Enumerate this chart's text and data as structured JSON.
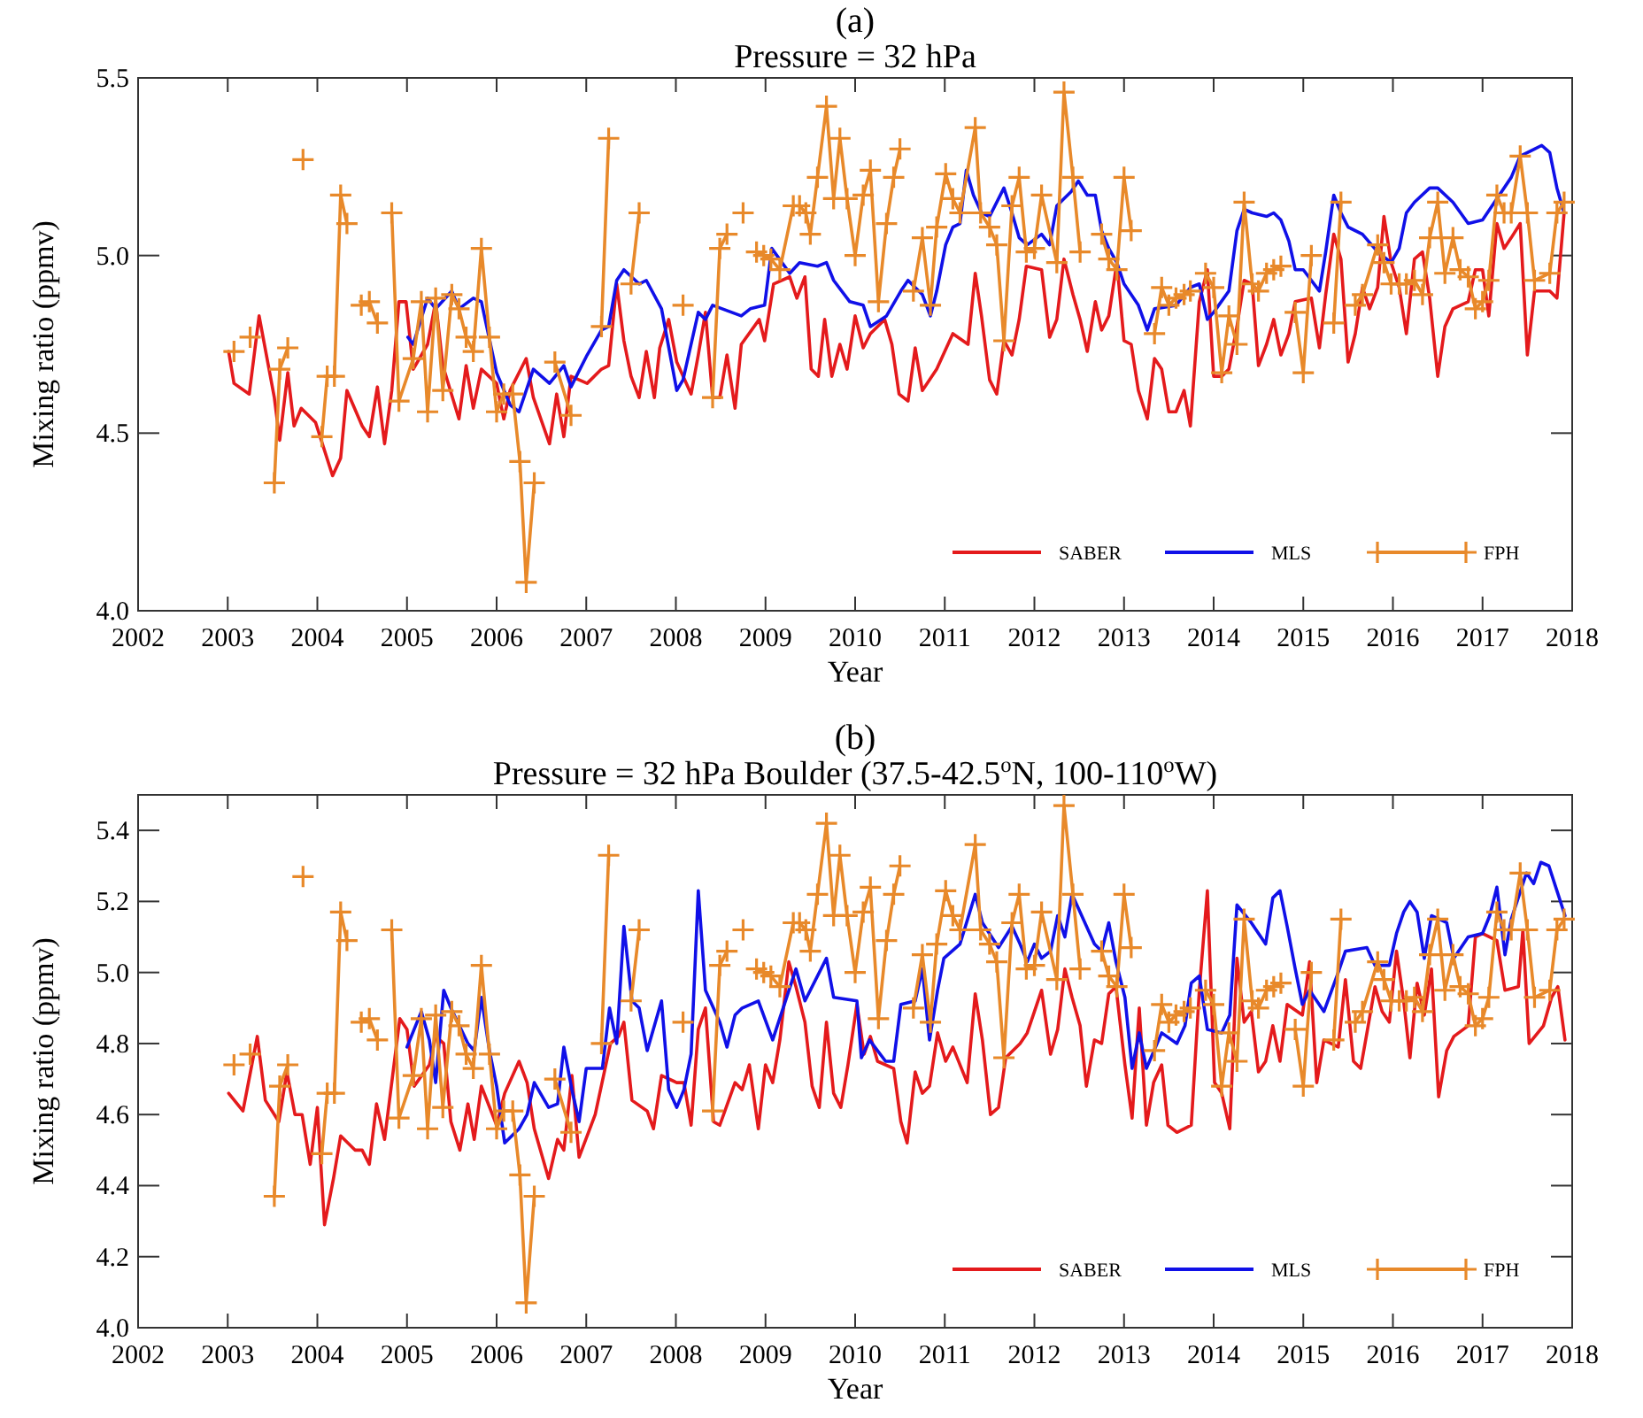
{
  "chart_data": [
    {
      "type": "line",
      "title": "(a)",
      "subtitle": "Pressure = 32 hPa",
      "xlabel": "Year",
      "ylabel": "Mixing ratio (ppmv)",
      "xlim": [
        2002,
        2018
      ],
      "xticks": [
        2002,
        2003,
        2004,
        2005,
        2006,
        2007,
        2008,
        2009,
        2010,
        2011,
        2012,
        2013,
        2014,
        2015,
        2016,
        2017,
        2018
      ],
      "ylim": [
        4.0,
        5.5
      ],
      "yticks": [
        {
          "value": 4.0,
          "label": "4.0"
        },
        {
          "value": 4.5,
          "label": "4.5"
        },
        {
          "value": 5.0,
          "label": "5.0"
        },
        {
          "value": 5.5,
          "label": "5.5"
        }
      ],
      "legend": "bottom right",
      "line_style": "solid",
      "series": [
        {
          "name": "SABER",
          "color": "#e41a1c",
          "marker": "none",
          "x": [
            2003.01,
            2003.07,
            2003.24,
            2003.35,
            2003.52,
            2003.58,
            2003.67,
            2003.74,
            2003.82,
            2003.98,
            2004.17,
            2004.26,
            2004.33,
            2004.5,
            2004.58,
            2004.67,
            2004.75,
            2004.83,
            2004.91,
            2004.99,
            2005.07,
            2005.23,
            2005.32,
            2005.4,
            2005.58,
            2005.66,
            2005.74,
            2005.83,
            2006.0,
            2006.08,
            2006.15,
            2006.33,
            2006.41,
            2006.59,
            2006.67,
            2006.75,
            2006.83,
            2007.01,
            2007.17,
            2007.25,
            2007.34,
            2007.42,
            2007.5,
            2007.59,
            2007.67,
            2007.76,
            2007.82,
            2007.92,
            2008.01,
            2008.17,
            2008.25,
            2008.33,
            2008.41,
            2008.49,
            2008.57,
            2008.66,
            2008.73,
            2008.93,
            2008.99,
            2009.09,
            2009.27,
            2009.35,
            2009.44,
            2009.51,
            2009.59,
            2009.66,
            2009.74,
            2009.83,
            2009.91,
            2010.0,
            2010.09,
            2010.17,
            2010.33,
            2010.41,
            2010.49,
            2010.59,
            2010.67,
            2010.75,
            2010.91,
            2011.09,
            2011.26,
            2011.34,
            2011.41,
            2011.5,
            2011.58,
            2011.66,
            2011.75,
            2011.83,
            2011.91,
            2012.08,
            2012.17,
            2012.25,
            2012.33,
            2012.43,
            2012.51,
            2012.59,
            2012.68,
            2012.75,
            2012.83,
            2012.92,
            2013.0,
            2013.08,
            2013.16,
            2013.26,
            2013.34,
            2013.42,
            2013.5,
            2013.58,
            2013.67,
            2013.74,
            2013.84,
            2013.93,
            2014.0,
            2014.09,
            2014.17,
            2014.26,
            2014.34,
            2014.43,
            2014.5,
            2014.59,
            2014.67,
            2014.75,
            2014.84,
            2014.91,
            2015.09,
            2015.18,
            2015.25,
            2015.34,
            2015.42,
            2015.5,
            2015.58,
            2015.66,
            2015.74,
            2015.83,
            2015.9,
            2015.98,
            2016.07,
            2016.15,
            2016.24,
            2016.33,
            2016.41,
            2016.5,
            2016.58,
            2016.67,
            2016.84,
            2016.92,
            2017.0,
            2017.07,
            2017.16,
            2017.24,
            2017.32,
            2017.42,
            2017.5,
            2017.58,
            2017.75,
            2017.83,
            2017.91
          ],
          "values": [
            4.73,
            4.64,
            4.61,
            4.83,
            4.6,
            4.48,
            4.67,
            4.52,
            4.57,
            4.53,
            4.38,
            4.43,
            4.62,
            4.52,
            4.49,
            4.63,
            4.47,
            4.62,
            4.87,
            4.87,
            4.68,
            4.75,
            4.87,
            4.69,
            4.54,
            4.69,
            4.57,
            4.68,
            4.64,
            4.54,
            4.62,
            4.71,
            4.6,
            4.47,
            4.61,
            4.49,
            4.66,
            4.64,
            4.68,
            4.69,
            4.92,
            4.76,
            4.66,
            4.6,
            4.73,
            4.6,
            4.74,
            4.82,
            4.7,
            4.61,
            4.72,
            4.84,
            4.6,
            4.6,
            4.72,
            4.57,
            4.75,
            4.82,
            4.76,
            4.92,
            4.94,
            4.88,
            4.94,
            4.68,
            4.66,
            4.82,
            4.66,
            4.75,
            4.68,
            4.83,
            4.74,
            4.78,
            4.82,
            4.75,
            4.61,
            4.59,
            4.74,
            4.62,
            4.68,
            4.78,
            4.75,
            4.95,
            4.83,
            4.65,
            4.61,
            4.76,
            4.72,
            4.82,
            4.97,
            4.96,
            4.77,
            4.82,
            4.99,
            4.89,
            4.82,
            4.73,
            4.87,
            4.79,
            4.83,
            4.98,
            4.76,
            4.75,
            4.62,
            4.54,
            4.71,
            4.68,
            4.56,
            4.56,
            4.62,
            4.52,
            4.87,
            4.96,
            4.66,
            4.66,
            4.68,
            4.8,
            4.93,
            4.92,
            4.69,
            4.75,
            4.82,
            4.72,
            4.78,
            4.87,
            4.88,
            4.74,
            4.89,
            5.06,
            4.99,
            4.7,
            4.78,
            4.91,
            4.85,
            4.91,
            5.11,
            4.98,
            4.91,
            4.78,
            4.99,
            5.01,
            4.88,
            4.66,
            4.8,
            4.85,
            4.87,
            4.96,
            4.96,
            4.83,
            5.09,
            5.02,
            5.05,
            5.09,
            4.72,
            4.9,
            4.9,
            4.88,
            5.12
          ]
        },
        {
          "name": "MLS",
          "color": "#1010e8",
          "marker": "none",
          "x": [
            2005.01,
            2005.07,
            2005.23,
            2005.32,
            2005.5,
            2005.58,
            2005.74,
            2005.83,
            2006.0,
            2006.15,
            2006.25,
            2006.41,
            2006.59,
            2006.75,
            2006.83,
            2007.01,
            2007.17,
            2007.25,
            2007.34,
            2007.42,
            2007.59,
            2007.67,
            2007.84,
            2008.01,
            2008.08,
            2008.25,
            2008.33,
            2008.41,
            2008.73,
            2008.83,
            2008.99,
            2009.07,
            2009.27,
            2009.38,
            2009.58,
            2009.68,
            2009.76,
            2009.94,
            2010.09,
            2010.17,
            2010.35,
            2010.51,
            2010.59,
            2010.75,
            2010.84,
            2010.91,
            2011.01,
            2011.09,
            2011.17,
            2011.24,
            2011.32,
            2011.41,
            2011.5,
            2011.66,
            2011.75,
            2011.83,
            2011.92,
            2012.08,
            2012.17,
            2012.25,
            2012.41,
            2012.49,
            2012.59,
            2012.68,
            2012.75,
            2012.83,
            2012.92,
            2013.0,
            2013.16,
            2013.26,
            2013.34,
            2013.58,
            2013.74,
            2013.84,
            2013.93,
            2014.0,
            2014.17,
            2014.26,
            2014.34,
            2014.43,
            2014.59,
            2014.67,
            2014.75,
            2014.84,
            2014.91,
            2015.0,
            2015.18,
            2015.25,
            2015.34,
            2015.42,
            2015.5,
            2015.66,
            2015.83,
            2015.98,
            2016.07,
            2016.15,
            2016.24,
            2016.41,
            2016.5,
            2016.67,
            2016.84,
            2017.0,
            2017.16,
            2017.32,
            2017.42,
            2017.58,
            2017.66,
            2017.75,
            2017.83,
            2017.91
          ],
          "values": [
            4.77,
            4.75,
            4.88,
            4.85,
            4.9,
            4.85,
            4.88,
            4.87,
            4.67,
            4.58,
            4.56,
            4.68,
            4.64,
            4.69,
            4.63,
            4.72,
            4.79,
            4.8,
            4.93,
            4.96,
            4.92,
            4.93,
            4.85,
            4.62,
            4.65,
            4.84,
            4.82,
            4.86,
            4.83,
            4.85,
            4.86,
            5.02,
            4.95,
            4.98,
            4.97,
            4.98,
            4.93,
            4.87,
            4.86,
            4.8,
            4.83,
            4.9,
            4.93,
            4.89,
            4.83,
            4.9,
            5.03,
            5.08,
            5.09,
            5.24,
            5.17,
            5.12,
            5.11,
            5.19,
            5.12,
            5.05,
            5.03,
            5.06,
            5.03,
            5.14,
            5.18,
            5.21,
            5.17,
            5.17,
            5.07,
            5.02,
            4.98,
            4.92,
            4.86,
            4.79,
            4.85,
            4.86,
            4.91,
            4.92,
            4.82,
            4.84,
            4.9,
            5.07,
            5.13,
            5.12,
            5.11,
            5.12,
            5.1,
            5.04,
            4.96,
            4.96,
            4.9,
            5.01,
            5.17,
            5.12,
            5.08,
            5.06,
            5.01,
            4.98,
            5.02,
            5.12,
            5.15,
            5.19,
            5.19,
            5.15,
            5.09,
            5.1,
            5.16,
            5.22,
            5.28,
            5.3,
            5.31,
            5.29,
            5.19,
            5.12
          ]
        },
        {
          "name": "FPH",
          "color": "#e8892a",
          "marker": "cross",
          "x": [
            2003.07,
            2003.08,
            2003.25,
            2003.26,
            2003.52,
            2003.58,
            2003.67,
            2003.68,
            2003.84,
            2003.85,
            2004.05,
            2004.11,
            2004.19,
            2004.26,
            2004.33,
            2004.34,
            2004.49,
            2004.58,
            2004.67,
            2004.68,
            2004.83,
            2004.91,
            2005.07,
            2005.16,
            2005.23,
            2005.32,
            2005.4,
            2005.5,
            2005.58,
            2005.66,
            2005.74,
            2005.83,
            2005.92,
            2006.0,
            2006.08,
            2006.18,
            2006.26,
            2006.33,
            2006.42,
            2006.43,
            2006.65,
            2006.83,
            2006.84,
            2007.17,
            2007.25,
            2007.26,
            2007.5,
            2007.59,
            2007.6,
            2008.08,
            2008.09,
            2008.41,
            2008.49,
            2008.57,
            2008.58,
            2008.75,
            2008.76,
            2008.9,
            2008.98,
            2009.06,
            2009.16,
            2009.31,
            2009.38,
            2009.45,
            2009.5,
            2009.58,
            2009.68,
            2009.76,
            2009.83,
            2009.91,
            2010.0,
            2010.09,
            2010.17,
            2010.26,
            2010.35,
            2010.43,
            2010.5,
            2010.51,
            2010.65,
            2010.75,
            2010.84,
            2010.91,
            2011.01,
            2011.09,
            2011.17,
            2011.34,
            2011.4,
            2011.5,
            2011.58,
            2011.66,
            2011.75,
            2011.83,
            2011.91,
            2012.0,
            2012.08,
            2012.25,
            2012.33,
            2012.43,
            2012.51,
            2012.52,
            2012.75,
            2012.83,
            2012.92,
            2013.0,
            2013.08,
            2013.09,
            2013.34,
            2013.42,
            2013.5,
            2013.58,
            2013.67,
            2013.74,
            2013.75,
            2013.91,
            2014.0,
            2014.09,
            2014.17,
            2014.26,
            2014.34,
            2014.43,
            2014.5,
            2014.59,
            2014.67,
            2014.75,
            2014.76,
            2014.91,
            2015.0,
            2015.09,
            2015.1,
            2015.34,
            2015.42,
            2015.43,
            2015.58,
            2015.66,
            2015.83,
            2015.9,
            2015.98,
            2016.07,
            2016.15,
            2016.24,
            2016.33,
            2016.41,
            2016.5,
            2016.58,
            2016.67,
            2016.75,
            2016.84,
            2016.92,
            2017.0,
            2017.07,
            2017.16,
            2017.24,
            2017.32,
            2017.42,
            2017.5,
            2017.58,
            2017.75,
            2017.83,
            2017.91
          ],
          "values": [
            4.73,
            null,
            4.77,
            null,
            4.36,
            4.68,
            4.74,
            null,
            5.27,
            null,
            4.49,
            4.66,
            4.66,
            5.17,
            5.09,
            null,
            4.86,
            4.87,
            4.81,
            null,
            5.12,
            4.59,
            4.71,
            4.87,
            4.56,
            4.88,
            4.62,
            4.89,
            4.85,
            4.77,
            4.73,
            5.02,
            4.77,
            4.56,
            4.61,
            4.61,
            4.42,
            4.08,
            4.36,
            null,
            4.7,
            4.55,
            null,
            4.8,
            5.33,
            null,
            4.92,
            5.12,
            null,
            4.86,
            null,
            4.6,
            5.02,
            5.06,
            null,
            5.12,
            null,
            5.01,
            5.0,
            4.99,
            4.96,
            5.14,
            5.14,
            5.12,
            5.06,
            5.22,
            5.42,
            5.16,
            5.33,
            5.16,
            5.0,
            5.17,
            5.24,
            4.87,
            5.09,
            5.22,
            5.3,
            null,
            4.9,
            5.05,
            4.86,
            5.08,
            5.23,
            5.16,
            5.12,
            5.36,
            5.12,
            5.08,
            5.03,
            4.76,
            5.14,
            5.22,
            5.01,
            5.02,
            5.17,
            4.98,
            5.46,
            5.22,
            5.01,
            null,
            5.06,
            4.99,
            4.96,
            5.22,
            5.07,
            null,
            4.78,
            4.91,
            4.86,
            4.88,
            4.89,
            4.9,
            null,
            4.95,
            4.91,
            4.67,
            4.83,
            4.75,
            5.15,
            4.92,
            4.9,
            4.95,
            4.96,
            4.97,
            null,
            4.84,
            4.67,
            5.0,
            null,
            4.81,
            5.15,
            null,
            4.86,
            4.89,
            5.03,
            4.98,
            4.92,
            4.92,
            4.92,
            4.93,
            4.89,
            5.05,
            5.15,
            4.95,
            5.05,
            4.96,
            4.94,
            4.85,
            4.87,
            4.93,
            5.17,
            5.12,
            5.12,
            5.28,
            5.12,
            4.93,
            4.95,
            5.12,
            5.15
          ]
        }
      ]
    },
    {
      "type": "line",
      "title": "(b)",
      "subtitle": "Pressure = 32 hPa  Boulder (37.5-42.5$^{o}$N, 100-110$^{o}$W)",
      "xlabel": "Year",
      "ylabel": "Mixing ratio (ppmv)",
      "xlim": [
        2002,
        2018
      ],
      "xticks": [
        2002,
        2003,
        2004,
        2005,
        2006,
        2007,
        2008,
        2009,
        2010,
        2011,
        2012,
        2013,
        2014,
        2015,
        2016,
        2017,
        2018
      ],
      "ylim": [
        4.0,
        5.5
      ],
      "yticks": [
        {
          "value": 4.0,
          "label": "4.0"
        },
        {
          "value": 4.2,
          "label": "4.2"
        },
        {
          "value": 4.4,
          "label": "4.4"
        },
        {
          "value": 4.6,
          "label": "4.6"
        },
        {
          "value": 4.8,
          "label": "4.8"
        },
        {
          "value": 5.0,
          "label": "5.0"
        },
        {
          "value": 5.2,
          "label": "5.2"
        },
        {
          "value": 5.4,
          "label": "5.4"
        }
      ],
      "legend": "bottom right",
      "line_style": "solid",
      "series": [
        {
          "name": "SABER",
          "color": "#e41a1c",
          "marker": "none",
          "x": [
            2003.01,
            2003.17,
            2003.33,
            2003.42,
            2003.57,
            2003.66,
            2003.75,
            2003.83,
            2003.92,
            2004.0,
            2004.08,
            2004.18,
            2004.26,
            2004.42,
            2004.5,
            2004.58,
            2004.66,
            2004.75,
            2004.84,
            2004.92,
            2005.0,
            2005.08,
            2005.25,
            2005.32,
            2005.41,
            2005.49,
            2005.59,
            2005.68,
            2005.75,
            2005.83,
            2006.0,
            2006.09,
            2006.25,
            2006.34,
            2006.42,
            2006.58,
            2006.68,
            2006.75,
            2006.84,
            2006.92,
            2007.1,
            2007.27,
            2007.36,
            2007.42,
            2007.51,
            2007.68,
            2007.75,
            2007.84,
            2008.01,
            2008.09,
            2008.17,
            2008.25,
            2008.33,
            2008.42,
            2008.49,
            2008.66,
            2008.74,
            2008.82,
            2008.92,
            2009.0,
            2009.08,
            2009.16,
            2009.26,
            2009.34,
            2009.44,
            2009.52,
            2009.6,
            2009.68,
            2009.76,
            2009.84,
            2009.92,
            2010.02,
            2010.1,
            2010.17,
            2010.25,
            2010.43,
            2010.51,
            2010.58,
            2010.67,
            2010.75,
            2010.83,
            2010.92,
            2011.01,
            2011.09,
            2011.25,
            2011.34,
            2011.42,
            2011.51,
            2011.6,
            2011.68,
            2011.84,
            2011.92,
            2012.0,
            2012.08,
            2012.18,
            2012.26,
            2012.34,
            2012.42,
            2012.51,
            2012.58,
            2012.67,
            2012.75,
            2012.83,
            2012.91,
            2013.01,
            2013.09,
            2013.17,
            2013.25,
            2013.33,
            2013.42,
            2013.49,
            2013.59,
            2013.75,
            2013.84,
            2013.93,
            2014.01,
            2014.09,
            2014.18,
            2014.26,
            2014.34,
            2014.42,
            2014.5,
            2014.58,
            2014.66,
            2014.74,
            2014.82,
            2014.99,
            2015.07,
            2015.15,
            2015.23,
            2015.39,
            2015.47,
            2015.56,
            2015.64,
            2015.71,
            2015.8,
            2015.88,
            2015.96,
            2016.04,
            2016.12,
            2016.19,
            2016.27,
            2016.35,
            2016.43,
            2016.51,
            2016.6,
            2016.68,
            2016.84,
            2016.92,
            2017.0,
            2017.16,
            2017.25,
            2017.4,
            2017.45,
            2017.52,
            2017.68,
            2017.77,
            2017.84,
            2017.92
          ],
          "values": [
            4.66,
            4.61,
            4.82,
            4.64,
            4.58,
            4.72,
            4.6,
            4.6,
            4.46,
            4.62,
            4.29,
            4.42,
            4.54,
            4.5,
            4.5,
            4.46,
            4.63,
            4.53,
            4.71,
            4.87,
            4.84,
            4.68,
            4.74,
            4.82,
            4.8,
            4.58,
            4.5,
            4.63,
            4.53,
            4.68,
            4.57,
            4.66,
            4.75,
            4.69,
            4.56,
            4.42,
            4.53,
            4.5,
            4.71,
            4.48,
            4.6,
            4.8,
            4.82,
            4.86,
            4.64,
            4.61,
            4.56,
            4.71,
            4.69,
            4.69,
            4.57,
            4.84,
            4.9,
            4.58,
            4.57,
            4.69,
            4.67,
            4.74,
            4.56,
            4.74,
            4.69,
            4.81,
            5.03,
            4.96,
            4.86,
            4.68,
            4.62,
            4.86,
            4.66,
            4.62,
            4.74,
            4.91,
            4.77,
            4.82,
            4.75,
            4.73,
            4.58,
            4.52,
            4.72,
            4.66,
            4.68,
            4.83,
            4.75,
            4.79,
            4.69,
            4.94,
            4.81,
            4.6,
            4.62,
            4.76,
            4.8,
            4.83,
            4.89,
            4.95,
            4.77,
            4.84,
            5.01,
            4.93,
            4.85,
            4.68,
            4.81,
            4.8,
            4.94,
            4.96,
            4.74,
            4.59,
            4.9,
            4.57,
            4.69,
            4.74,
            4.57,
            4.55,
            4.57,
            4.95,
            5.23,
            4.69,
            4.66,
            4.56,
            5.04,
            4.86,
            4.89,
            4.72,
            4.75,
            4.85,
            4.75,
            4.91,
            4.88,
            5.03,
            4.69,
            4.81,
            4.79,
            4.98,
            4.75,
            4.73,
            4.83,
            4.96,
            4.89,
            4.86,
            5.06,
            4.92,
            4.76,
            4.97,
            4.88,
            5.01,
            4.65,
            4.78,
            4.82,
            4.85,
            5.1,
            5.11,
            5.09,
            4.95,
            4.96,
            5.12,
            4.8,
            4.85,
            4.93,
            4.96,
            4.81
          ]
        },
        {
          "name": "MLS",
          "color": "#1010e8",
          "marker": "none",
          "x": [
            2005.0,
            2005.16,
            2005.25,
            2005.32,
            2005.41,
            2005.49,
            2005.68,
            2005.75,
            2005.83,
            2005.92,
            2006.0,
            2006.09,
            2006.25,
            2006.34,
            2006.42,
            2006.58,
            2006.68,
            2006.75,
            2006.84,
            2006.92,
            2007.0,
            2007.18,
            2007.26,
            2007.34,
            2007.42,
            2007.51,
            2007.59,
            2007.68,
            2007.84,
            2007.92,
            2008.01,
            2008.09,
            2008.17,
            2008.25,
            2008.33,
            2008.49,
            2008.57,
            2008.66,
            2008.74,
            2008.92,
            2009.08,
            2009.34,
            2009.44,
            2009.68,
            2009.76,
            2010.02,
            2010.07,
            2010.16,
            2010.34,
            2010.43,
            2010.51,
            2010.67,
            2010.75,
            2010.83,
            2010.92,
            2010.99,
            2011.17,
            2011.34,
            2011.42,
            2011.6,
            2011.75,
            2011.84,
            2011.92,
            2012.0,
            2012.08,
            2012.18,
            2012.26,
            2012.34,
            2012.42,
            2012.51,
            2012.67,
            2012.75,
            2012.83,
            2012.91,
            2013.01,
            2013.09,
            2013.17,
            2013.25,
            2013.42,
            2013.59,
            2013.68,
            2013.75,
            2013.84,
            2013.93,
            2014.09,
            2014.18,
            2014.26,
            2014.42,
            2014.58,
            2014.66,
            2014.74,
            2014.82,
            2014.91,
            2014.99,
            2015.07,
            2015.23,
            2015.39,
            2015.47,
            2015.71,
            2015.8,
            2015.96,
            2016.04,
            2016.12,
            2016.19,
            2016.27,
            2016.35,
            2016.43,
            2016.6,
            2016.68,
            2016.84,
            2017.0,
            2017.08,
            2017.16,
            2017.25,
            2017.32,
            2017.49,
            2017.57,
            2017.65,
            2017.74,
            2017.83,
            2017.92
          ],
          "values": [
            4.79,
            4.89,
            4.81,
            4.69,
            4.95,
            4.9,
            4.8,
            4.78,
            4.93,
            4.78,
            4.68,
            4.52,
            4.56,
            4.6,
            4.69,
            4.62,
            4.63,
            4.79,
            4.67,
            4.58,
            4.73,
            4.73,
            4.9,
            4.8,
            5.13,
            4.92,
            4.9,
            4.78,
            4.92,
            4.67,
            4.62,
            4.67,
            4.77,
            5.23,
            4.95,
            4.86,
            4.79,
            4.88,
            4.9,
            4.92,
            4.81,
            5.01,
            4.92,
            5.04,
            4.93,
            4.92,
            4.76,
            4.81,
            4.75,
            4.75,
            4.91,
            4.92,
            5.01,
            4.81,
            4.95,
            5.04,
            5.08,
            5.22,
            5.14,
            5.07,
            5.13,
            5.08,
            5.03,
            5.08,
            5.04,
            5.06,
            5.16,
            5.1,
            5.22,
            5.17,
            5.08,
            5.06,
            5.14,
            5.03,
            4.93,
            4.73,
            4.83,
            4.73,
            4.83,
            4.8,
            4.85,
            4.97,
            4.99,
            4.84,
            4.83,
            4.88,
            5.19,
            5.14,
            5.08,
            5.21,
            5.23,
            5.13,
            5.01,
            4.91,
            4.95,
            4.89,
            5.0,
            5.06,
            5.07,
            5.02,
            5.02,
            5.11,
            5.17,
            5.2,
            5.17,
            5.04,
            5.16,
            5.14,
            5.04,
            5.1,
            5.11,
            5.16,
            5.24,
            5.05,
            5.15,
            5.28,
            5.25,
            5.31,
            5.3,
            5.23,
            5.16
          ]
        },
        {
          "name": "FPH",
          "color": "#e8892a",
          "marker": "cross",
          "x": [
            2003.07,
            2003.08,
            2003.25,
            2003.26,
            2003.52,
            2003.58,
            2003.67,
            2003.68,
            2003.84,
            2003.85,
            2004.05,
            2004.11,
            2004.19,
            2004.26,
            2004.33,
            2004.34,
            2004.49,
            2004.58,
            2004.67,
            2004.68,
            2004.83,
            2004.91,
            2005.07,
            2005.16,
            2005.23,
            2005.32,
            2005.4,
            2005.5,
            2005.58,
            2005.66,
            2005.74,
            2005.83,
            2005.92,
            2006.0,
            2006.08,
            2006.18,
            2006.26,
            2006.33,
            2006.42,
            2006.43,
            2006.65,
            2006.83,
            2006.84,
            2007.17,
            2007.25,
            2007.26,
            2007.5,
            2007.59,
            2007.6,
            2008.08,
            2008.09,
            2008.41,
            2008.49,
            2008.57,
            2008.58,
            2008.75,
            2008.76,
            2008.9,
            2008.98,
            2009.06,
            2009.16,
            2009.31,
            2009.38,
            2009.45,
            2009.5,
            2009.58,
            2009.68,
            2009.76,
            2009.83,
            2009.91,
            2010.0,
            2010.09,
            2010.17,
            2010.26,
            2010.35,
            2010.43,
            2010.5,
            2010.51,
            2010.65,
            2010.75,
            2010.84,
            2010.91,
            2011.01,
            2011.09,
            2011.17,
            2011.34,
            2011.4,
            2011.5,
            2011.58,
            2011.66,
            2011.75,
            2011.83,
            2011.91,
            2012.0,
            2012.08,
            2012.25,
            2012.33,
            2012.43,
            2012.51,
            2012.52,
            2012.75,
            2012.83,
            2012.92,
            2013.0,
            2013.08,
            2013.09,
            2013.34,
            2013.42,
            2013.5,
            2013.58,
            2013.67,
            2013.74,
            2013.75,
            2013.91,
            2014.0,
            2014.09,
            2014.17,
            2014.26,
            2014.34,
            2014.43,
            2014.5,
            2014.59,
            2014.67,
            2014.75,
            2014.76,
            2014.91,
            2015.0,
            2015.09,
            2015.1,
            2015.34,
            2015.42,
            2015.43,
            2015.58,
            2015.66,
            2015.83,
            2015.9,
            2015.98,
            2016.07,
            2016.15,
            2016.24,
            2016.33,
            2016.41,
            2016.5,
            2016.58,
            2016.67,
            2016.75,
            2016.84,
            2016.92,
            2017.0,
            2017.07,
            2017.16,
            2017.24,
            2017.32,
            2017.42,
            2017.5,
            2017.58,
            2017.75,
            2017.83,
            2017.91
          ],
          "values": [
            4.74,
            null,
            4.77,
            null,
            4.37,
            4.68,
            4.74,
            null,
            5.27,
            null,
            4.49,
            4.66,
            4.66,
            5.17,
            5.09,
            null,
            4.86,
            4.87,
            4.81,
            null,
            5.12,
            4.59,
            4.71,
            4.87,
            4.56,
            4.88,
            4.62,
            4.89,
            4.85,
            4.77,
            4.73,
            5.02,
            4.77,
            4.56,
            4.61,
            4.61,
            4.43,
            4.07,
            4.37,
            null,
            4.7,
            4.55,
            null,
            4.8,
            5.33,
            null,
            4.92,
            5.12,
            null,
            4.86,
            null,
            4.61,
            5.02,
            5.06,
            null,
            5.12,
            null,
            5.01,
            5.0,
            4.99,
            4.96,
            5.14,
            5.14,
            5.12,
            5.06,
            5.22,
            5.42,
            5.16,
            5.33,
            5.16,
            5.0,
            5.17,
            5.24,
            4.87,
            5.09,
            5.22,
            5.3,
            null,
            4.9,
            5.05,
            4.86,
            5.08,
            5.23,
            5.16,
            5.12,
            5.36,
            5.12,
            5.08,
            5.03,
            4.76,
            5.14,
            5.22,
            5.01,
            5.02,
            5.17,
            4.98,
            5.47,
            5.22,
            5.01,
            null,
            5.06,
            4.99,
            4.96,
            5.22,
            5.07,
            null,
            4.78,
            4.91,
            4.86,
            4.88,
            4.89,
            4.9,
            null,
            4.95,
            4.91,
            4.68,
            4.83,
            4.75,
            5.15,
            4.92,
            4.9,
            4.95,
            4.96,
            4.97,
            null,
            4.84,
            4.68,
            5.0,
            null,
            4.81,
            5.15,
            null,
            4.86,
            4.89,
            5.03,
            4.98,
            4.92,
            4.92,
            4.92,
            4.93,
            4.89,
            5.05,
            5.15,
            4.95,
            5.05,
            4.96,
            4.94,
            4.85,
            4.87,
            4.93,
            5.17,
            5.12,
            5.12,
            5.28,
            5.12,
            4.93,
            4.95,
            5.12,
            5.15
          ]
        }
      ]
    }
  ]
}
